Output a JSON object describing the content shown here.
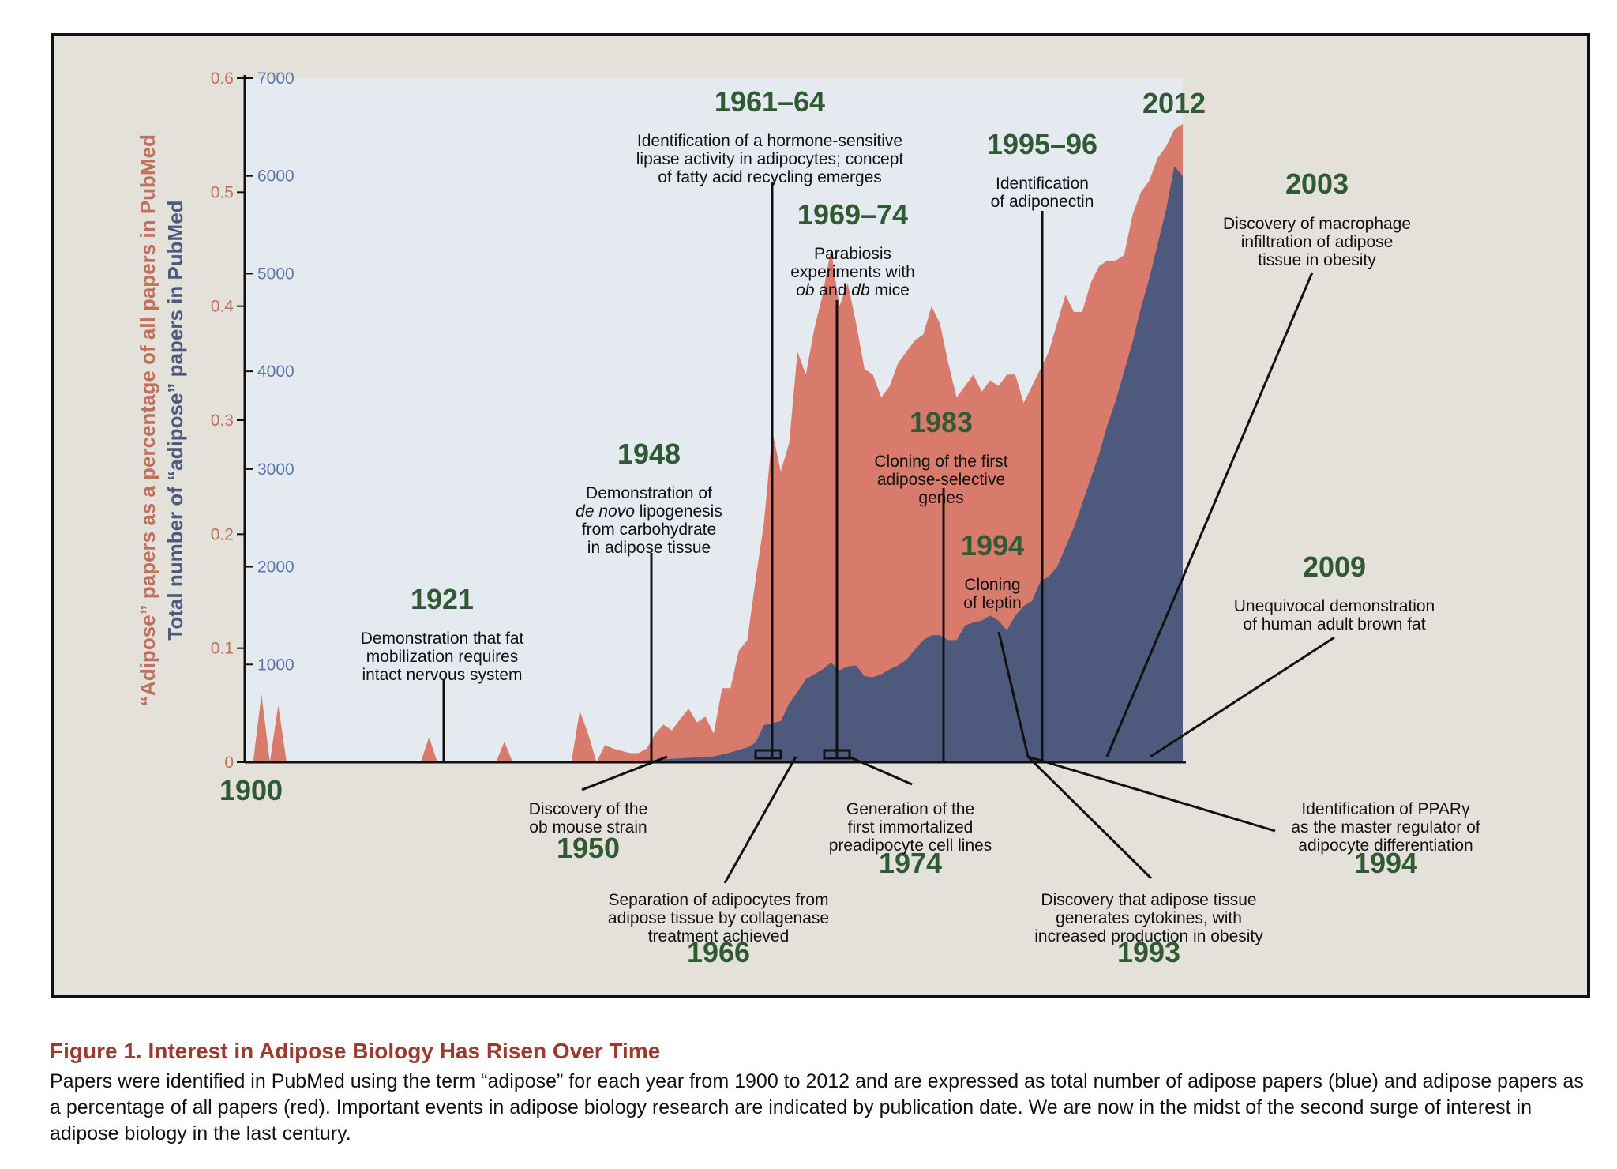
{
  "colors": {
    "frame_bg": "#e3e1da",
    "plot_bg": "#e5eaf0",
    "red_area": "#d87b6c",
    "blue_area": "#4e5a7d",
    "green_text": "#2f5a33",
    "red_axis": "#c0705e",
    "blue_axis": "#5b77a8",
    "caption_red": "#9c3a2e"
  },
  "caption": {
    "title": "Figure 1.  Interest in Adipose Biology Has Risen Over Time",
    "text": "Papers were identified in PubMed using the term “adipose” for each year from 1900 to 2012 and are expressed as total number of adipose papers (blue) and adipose papers as a percentage of all papers (red). Important events in adipose biology research are indicated by publication date. We are now in the midst of the second surge of interest in adipose biology in the last century."
  },
  "chart_data": {
    "type": "area",
    "x_start_label": "1900",
    "xlim": [
      1900,
      2012
    ],
    "y_left": {
      "label_red": "“Adipose” papers as a percentage of all papers in PubMed",
      "ylim": [
        0,
        0.6
      ],
      "ticks": [
        "0",
        "0.1",
        "0.2",
        "0.3",
        "0.4",
        "0.5",
        "0.6"
      ]
    },
    "y_right": {
      "label_blue": "Total number of “adipose” papers in PubMed",
      "ylim": [
        0,
        7000
      ],
      "ticks": [
        "1000",
        "2000",
        "3000",
        "4000",
        "5000",
        "6000",
        "7000"
      ]
    },
    "grid": false,
    "series": [
      {
        "color": "red",
        "unit": "percent",
        "points": [
          [
            1900,
            0
          ],
          [
            1901,
            0
          ],
          [
            1902,
            0.06
          ],
          [
            1903,
            0
          ],
          [
            1904,
            0.05
          ],
          [
            1905,
            0
          ],
          [
            1906,
            0
          ],
          [
            1920,
            0
          ],
          [
            1921,
            0
          ],
          [
            1922,
            0.022
          ],
          [
            1923,
            0
          ],
          [
            1930,
            0
          ],
          [
            1931,
            0.018
          ],
          [
            1932,
            0
          ],
          [
            1939,
            0
          ],
          [
            1940,
            0.045
          ],
          [
            1941,
            0.025
          ],
          [
            1942,
            0
          ],
          [
            1943,
            0.015
          ],
          [
            1944,
            0.012
          ],
          [
            1945,
            0.01
          ],
          [
            1946,
            0.008
          ],
          [
            1947,
            0.008
          ],
          [
            1948,
            0.012
          ],
          [
            1949,
            0.025
          ],
          [
            1950,
            0.033
          ],
          [
            1951,
            0.028
          ],
          [
            1952,
            0.038
          ],
          [
            1953,
            0.047
          ],
          [
            1954,
            0.035
          ],
          [
            1955,
            0.04
          ],
          [
            1956,
            0.025
          ],
          [
            1957,
            0.065
          ],
          [
            1958,
            0.065
          ],
          [
            1959,
            0.098
          ],
          [
            1960,
            0.107
          ],
          [
            1961,
            0.16
          ],
          [
            1962,
            0.21
          ],
          [
            1963,
            0.29
          ],
          [
            1964,
            0.255
          ],
          [
            1965,
            0.28
          ],
          [
            1966,
            0.36
          ],
          [
            1967,
            0.34
          ],
          [
            1968,
            0.38
          ],
          [
            1969,
            0.41
          ],
          [
            1970,
            0.45
          ],
          [
            1971,
            0.4
          ],
          [
            1972,
            0.42
          ],
          [
            1973,
            0.385
          ],
          [
            1974,
            0.345
          ],
          [
            1975,
            0.34
          ],
          [
            1976,
            0.32
          ],
          [
            1977,
            0.33
          ],
          [
            1978,
            0.35
          ],
          [
            1979,
            0.36
          ],
          [
            1980,
            0.37
          ],
          [
            1981,
            0.375
          ],
          [
            1982,
            0.4
          ],
          [
            1983,
            0.385
          ],
          [
            1984,
            0.35
          ],
          [
            1985,
            0.32
          ],
          [
            1986,
            0.33
          ],
          [
            1987,
            0.34
          ],
          [
            1988,
            0.325
          ],
          [
            1989,
            0.335
          ],
          [
            1990,
            0.33
          ],
          [
            1991,
            0.34
          ],
          [
            1992,
            0.34
          ],
          [
            1993,
            0.315
          ],
          [
            1994,
            0.33
          ],
          [
            1995,
            0.345
          ],
          [
            1996,
            0.36
          ],
          [
            1997,
            0.385
          ],
          [
            1998,
            0.41
          ],
          [
            1999,
            0.395
          ],
          [
            2000,
            0.395
          ],
          [
            2001,
            0.42
          ],
          [
            2002,
            0.435
          ],
          [
            2003,
            0.44
          ],
          [
            2004,
            0.44
          ],
          [
            2005,
            0.445
          ],
          [
            2006,
            0.48
          ],
          [
            2007,
            0.5
          ],
          [
            2008,
            0.51
          ],
          [
            2009,
            0.53
          ],
          [
            2010,
            0.54
          ],
          [
            2011,
            0.555
          ],
          [
            2012,
            0.56
          ]
        ]
      },
      {
        "color": "blue",
        "unit": "papers",
        "points": [
          [
            1900,
            0
          ],
          [
            1946,
            0
          ],
          [
            1948,
            20
          ],
          [
            1950,
            30
          ],
          [
            1952,
            40
          ],
          [
            1954,
            50
          ],
          [
            1956,
            60
          ],
          [
            1958,
            100
          ],
          [
            1960,
            150
          ],
          [
            1961,
            200
          ],
          [
            1962,
            380
          ],
          [
            1963,
            400
          ],
          [
            1964,
            420
          ],
          [
            1965,
            600
          ],
          [
            1966,
            720
          ],
          [
            1967,
            850
          ],
          [
            1968,
            900
          ],
          [
            1969,
            950
          ],
          [
            1970,
            1020
          ],
          [
            1971,
            940
          ],
          [
            1972,
            980
          ],
          [
            1973,
            990
          ],
          [
            1974,
            880
          ],
          [
            1975,
            870
          ],
          [
            1976,
            900
          ],
          [
            1977,
            950
          ],
          [
            1978,
            990
          ],
          [
            1979,
            1050
          ],
          [
            1980,
            1150
          ],
          [
            1981,
            1250
          ],
          [
            1982,
            1300
          ],
          [
            1983,
            1300
          ],
          [
            1984,
            1250
          ],
          [
            1985,
            1250
          ],
          [
            1986,
            1400
          ],
          [
            1987,
            1430
          ],
          [
            1988,
            1450
          ],
          [
            1989,
            1500
          ],
          [
            1990,
            1450
          ],
          [
            1991,
            1350
          ],
          [
            1992,
            1500
          ],
          [
            1993,
            1600
          ],
          [
            1994,
            1650
          ],
          [
            1995,
            1850
          ],
          [
            1996,
            1900
          ],
          [
            1997,
            2000
          ],
          [
            1998,
            2200
          ],
          [
            1999,
            2400
          ],
          [
            2000,
            2650
          ],
          [
            2001,
            2900
          ],
          [
            2002,
            3150
          ],
          [
            2003,
            3450
          ],
          [
            2004,
            3700
          ],
          [
            2005,
            4000
          ],
          [
            2006,
            4300
          ],
          [
            2007,
            4650
          ],
          [
            2008,
            4950
          ],
          [
            2009,
            5300
          ],
          [
            2010,
            5650
          ],
          [
            2011,
            6100
          ],
          [
            2012,
            6000
          ]
        ]
      }
    ],
    "annotations": [
      {
        "year": "1921",
        "text": [
          "Demonstration that fat",
          "mobilization requires",
          "intact nervous system"
        ]
      },
      {
        "year": "1948",
        "text": [
          "Demonstration of",
          "de novo lipogenesis",
          "from carbohydrate",
          "in adipose tissue"
        ],
        "italic_line": 1,
        "italic_part": "de novo"
      },
      {
        "year": "1961–64",
        "text": [
          "Identification of a hormone-sensitive",
          "lipase activity in adipocytes; concept",
          "of fatty acid recycling emerges"
        ]
      },
      {
        "year": "1969–74",
        "text": [
          "Parabiosis",
          "experiments with",
          "ob and db mice"
        ]
      },
      {
        "year": "1983",
        "text": [
          "Cloning of the first",
          "adipose-selective",
          "genes"
        ]
      },
      {
        "year": "1994",
        "text": [
          "Cloning",
          "of leptin"
        ]
      },
      {
        "year": "1995–96",
        "text": [
          "Identification",
          "of adiponectin"
        ]
      },
      {
        "year": "2012",
        "text": []
      },
      {
        "year": "2003",
        "text": [
          "Discovery of macrophage",
          "infiltration of adipose",
          "tissue in obesity"
        ]
      },
      {
        "year": "2009",
        "text": [
          "Unequivocal demonstration",
          "of human adult brown fat"
        ]
      },
      {
        "year": "1950",
        "text": [
          "Discovery of the",
          "ob mouse strain"
        ]
      },
      {
        "year": "1966",
        "text": [
          "Separation of adipocytes from",
          "adipose tissue by collagenase",
          "treatment achieved"
        ]
      },
      {
        "year": "1974",
        "text": [
          "Generation of the",
          "first immortalized",
          "preadipocyte cell lines"
        ]
      },
      {
        "year": "1993",
        "text": [
          "Discovery that adipose tissue",
          "generates cytokines, with",
          "increased production in obesity"
        ]
      },
      {
        "year": "1994",
        "text": [
          "Identification of PPARγ",
          "as the master regulator of",
          "adipocyte differentiation"
        ]
      }
    ]
  }
}
